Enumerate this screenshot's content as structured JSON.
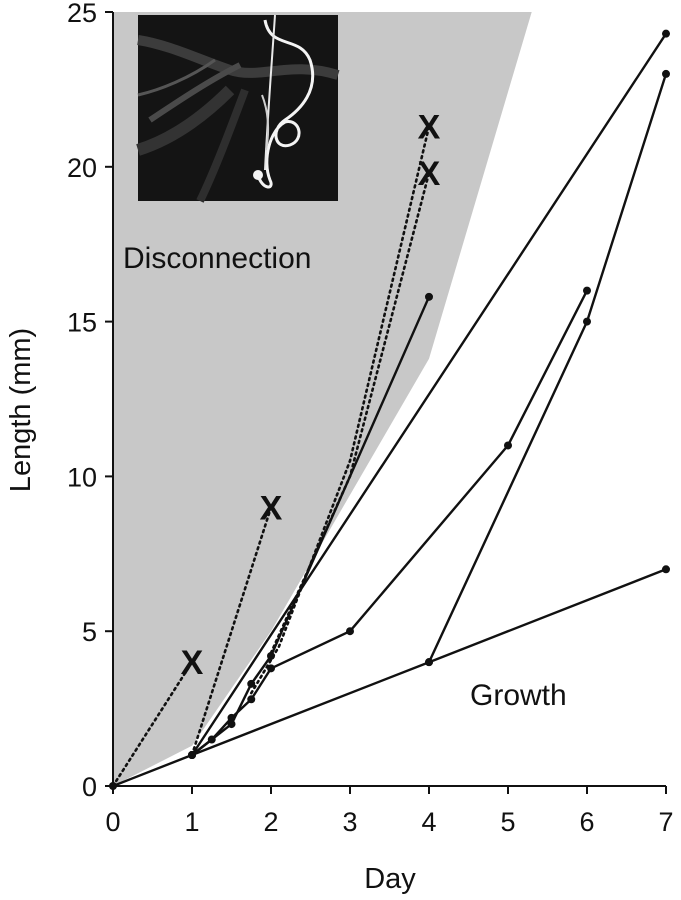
{
  "chart_data": {
    "type": "line",
    "xlabel": "Day",
    "ylabel": "Length (mm)",
    "xlim": [
      0,
      7
    ],
    "ylim": [
      0,
      25
    ],
    "xticks": [
      "0",
      "1",
      "2",
      "3",
      "4",
      "5",
      "6",
      "7"
    ],
    "yticks": [
      "0",
      "5",
      "10",
      "15",
      "20",
      "25"
    ],
    "grid": false,
    "legend": "none",
    "regions": [
      {
        "label": "Disconnection",
        "color": "#c8c8c8",
        "boundary": [
          [
            0,
            0
          ],
          [
            1,
            1.3
          ],
          [
            2,
            5
          ],
          [
            4,
            13.8
          ],
          [
            5.3,
            25
          ],
          [
            0,
            25
          ]
        ]
      },
      {
        "label": "Growth"
      }
    ],
    "series": [
      {
        "style": "solid",
        "marker": "dot",
        "points": [
          [
            0,
            0
          ],
          [
            1,
            1
          ],
          [
            4,
            4
          ],
          [
            7,
            7
          ]
        ]
      },
      {
        "style": "solid",
        "marker": "dot",
        "points": [
          [
            4,
            4
          ],
          [
            6,
            15
          ],
          [
            7,
            23
          ]
        ]
      },
      {
        "style": "solid",
        "marker": "dot",
        "points": [
          [
            1,
            1
          ],
          [
            7,
            24.3
          ]
        ]
      },
      {
        "style": "solid",
        "marker": "dot",
        "points": [
          [
            1,
            1
          ],
          [
            1.25,
            1.5
          ],
          [
            1.5,
            2.2
          ],
          [
            1.75,
            2.8
          ],
          [
            2,
            3.8
          ],
          [
            3,
            5
          ],
          [
            5,
            11
          ],
          [
            6,
            16
          ]
        ]
      },
      {
        "style": "solid",
        "marker": "dot",
        "points": [
          [
            1,
            1
          ],
          [
            1.5,
            2
          ],
          [
            1.75,
            3.3
          ],
          [
            2,
            4.2
          ],
          [
            4,
            15.8
          ]
        ]
      },
      {
        "style": "dotted",
        "marker": "x",
        "points": [
          [
            0,
            0
          ],
          [
            1,
            4
          ]
        ]
      },
      {
        "style": "dotted",
        "marker": "x",
        "points": [
          [
            1,
            1
          ],
          [
            2,
            9
          ]
        ]
      },
      {
        "style": "dotted",
        "marker": "x",
        "points": [
          [
            1.75,
            3
          ],
          [
            2.1,
            4.5
          ],
          [
            3,
            10.5
          ],
          [
            4,
            21.3
          ]
        ]
      },
      {
        "style": "dotted",
        "marker": "x",
        "points": [
          [
            2,
            4.3
          ],
          [
            3,
            10
          ],
          [
            4,
            19.8
          ]
        ]
      }
    ],
    "colors": {
      "line": "#111111",
      "shade": "#c8c8c8",
      "inset_bg": "#141414",
      "inset_fiber": "#f4f4f4"
    }
  }
}
